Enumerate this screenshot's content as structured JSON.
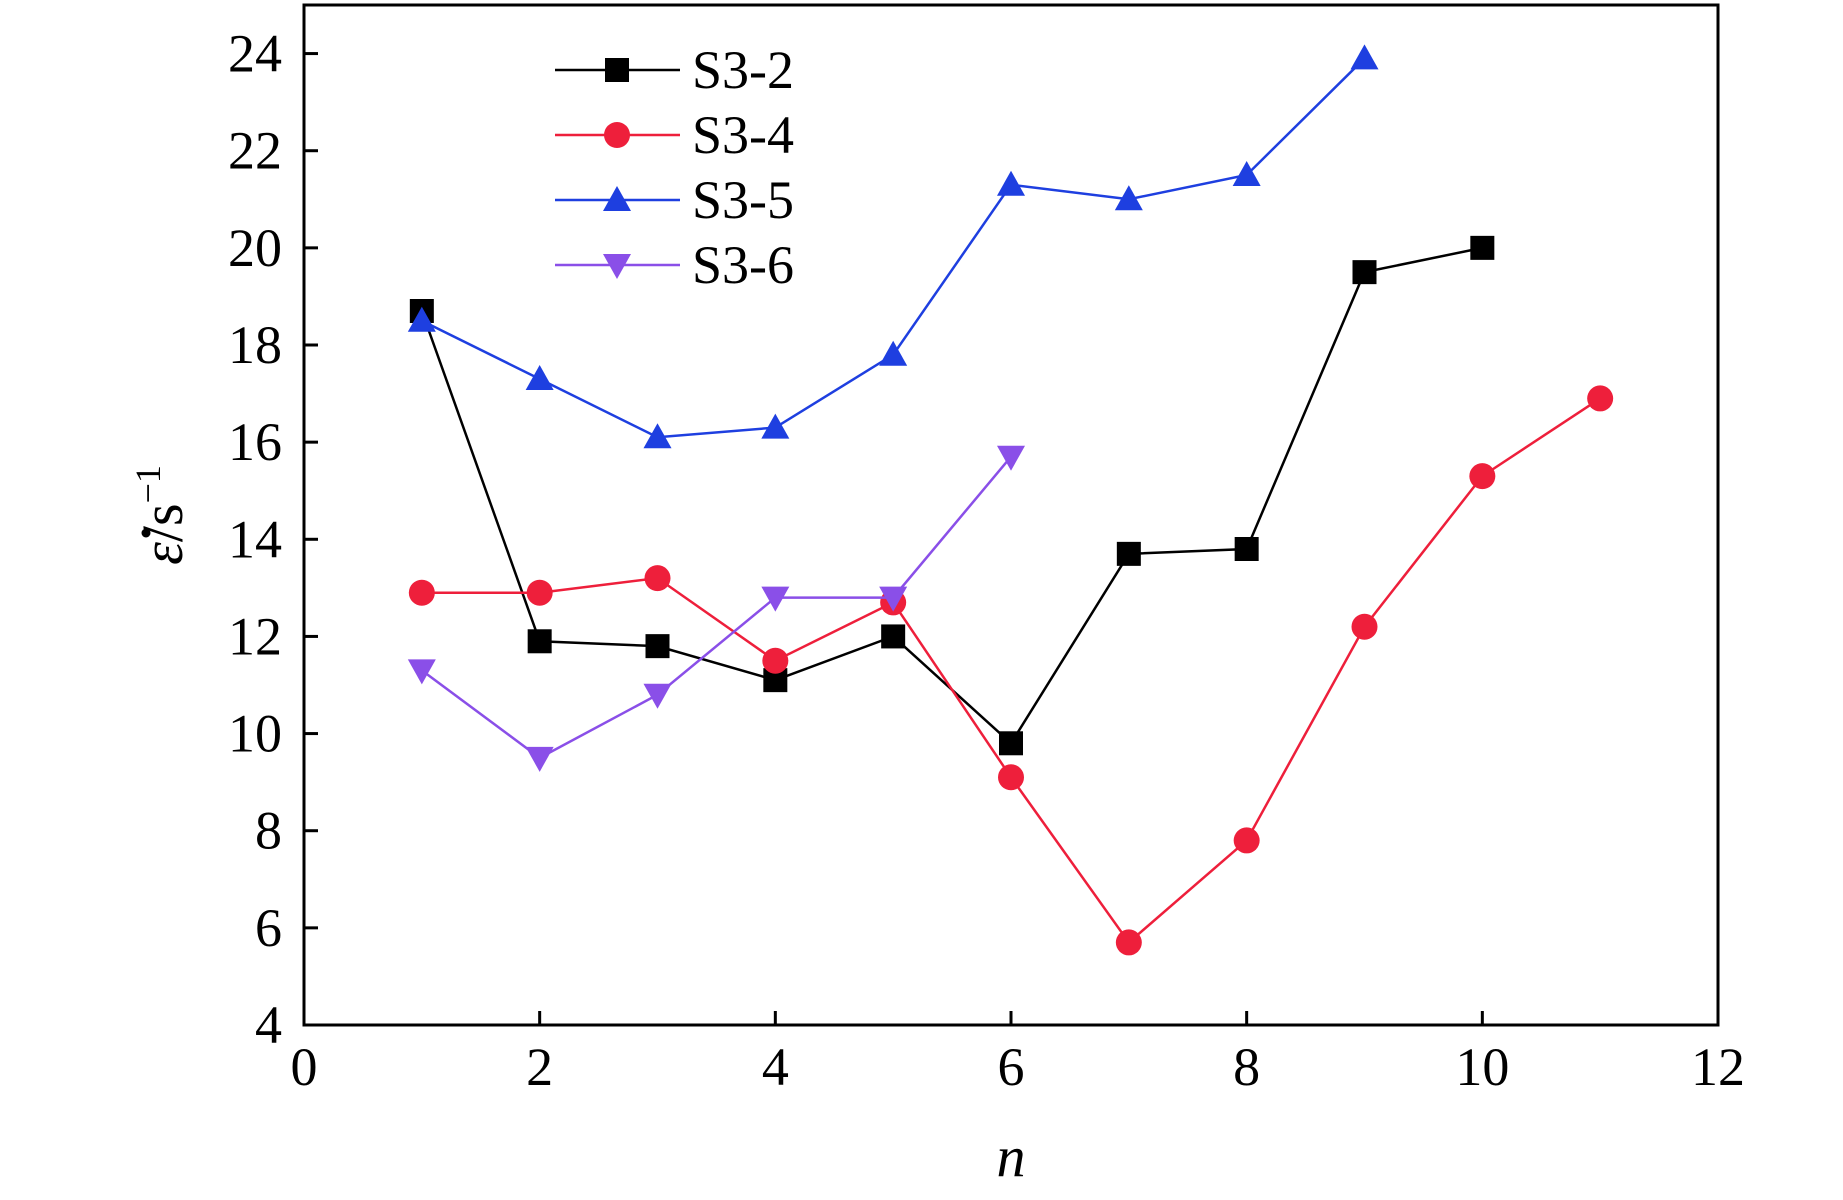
{
  "chart_data": {
    "type": "line",
    "xlabel": "n",
    "ylabel": {
      "symbol": "ε",
      "unit_base": "/s",
      "unit_exp": "−1"
    },
    "xlim": [
      0,
      12
    ],
    "ylim": [
      4,
      25
    ],
    "x_ticks": [
      "0",
      "2",
      "4",
      "6",
      "8",
      "10",
      "12"
    ],
    "y_ticks": [
      "4",
      "6",
      "8",
      "10",
      "12",
      "14",
      "16",
      "18",
      "20",
      "22",
      "24"
    ],
    "grid": false,
    "legend_position": "top-left",
    "series": [
      {
        "name": "S3-2",
        "color": "#000000",
        "marker": "square",
        "x": [
          1,
          2,
          3,
          4,
          5,
          6,
          7,
          8,
          9,
          10
        ],
        "y": [
          18.7,
          11.9,
          11.8,
          11.1,
          12.0,
          9.8,
          13.7,
          13.8,
          19.5,
          20.0
        ]
      },
      {
        "name": "S3-4",
        "color": "#ee1f3b",
        "marker": "circle",
        "x": [
          1,
          2,
          3,
          4,
          5,
          6,
          7,
          8,
          9,
          10,
          11
        ],
        "y": [
          12.9,
          12.9,
          13.2,
          11.5,
          12.7,
          9.1,
          5.7,
          7.8,
          12.2,
          15.3,
          16.9
        ]
      },
      {
        "name": "S3-5",
        "color": "#1e3fe0",
        "marker": "triangle-up",
        "x": [
          1,
          2,
          3,
          4,
          5,
          6,
          7,
          8,
          9
        ],
        "y": [
          18.5,
          17.3,
          16.1,
          16.3,
          17.8,
          21.3,
          21.0,
          21.5,
          23.9
        ]
      },
      {
        "name": "S3-6",
        "color": "#8a4fe8",
        "marker": "triangle-down",
        "x": [
          1,
          2,
          3,
          4,
          5,
          6
        ],
        "y": [
          11.3,
          9.5,
          10.8,
          12.8,
          12.8,
          15.7
        ]
      }
    ]
  }
}
